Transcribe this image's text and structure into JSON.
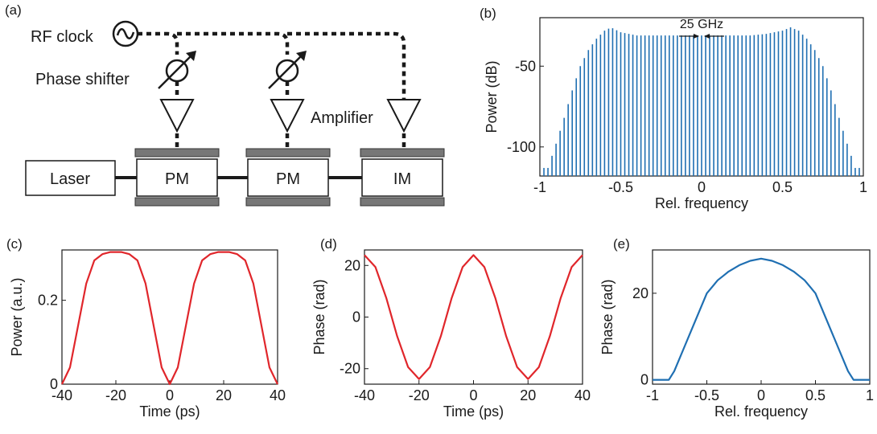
{
  "panel_labels": {
    "a": "(a)",
    "b": "(b)",
    "c": "(c)",
    "d": "(d)",
    "e": "(e)"
  },
  "schematic": {
    "rf_clock": "RF clock",
    "phase_shifter": "Phase shifter",
    "amplifier": "Amplifier",
    "laser": "Laser",
    "modulators": [
      "PM",
      "PM",
      "IM"
    ]
  },
  "chart_data": [
    {
      "panel": "b",
      "type": "bar",
      "xlabel": "Rel. frequency",
      "ylabel": "Power (dB)",
      "xlim": [
        -1,
        1
      ],
      "ylim": [
        -118,
        -20
      ],
      "xticks": [
        "-1",
        "-0.5",
        "0",
        "0.5",
        "1"
      ],
      "yticks": [
        "-50",
        "-100"
      ],
      "annotation": "25 GHz",
      "color": "#1f6fb2",
      "line_count": 79,
      "envelope_x": [
        -0.95,
        -0.9,
        -0.85,
        -0.8,
        -0.75,
        -0.7,
        -0.65,
        -0.6,
        -0.56,
        -0.5,
        -0.4,
        -0.3,
        -0.2,
        -0.1,
        0,
        0.1,
        0.2,
        0.3,
        0.4,
        0.5,
        0.55,
        0.6,
        0.65,
        0.7,
        0.75,
        0.8,
        0.85,
        0.9,
        0.95
      ],
      "envelope_y": [
        -113,
        -98,
        -82,
        -65,
        -50,
        -40,
        -33,
        -28,
        -26,
        -29,
        -31,
        -31,
        -31,
        -31,
        -31,
        -31,
        -31,
        -31,
        -30,
        -28,
        -26,
        -28,
        -33,
        -40,
        -50,
        -65,
        -82,
        -98,
        -113
      ]
    },
    {
      "panel": "c",
      "type": "line",
      "xlabel": "Time (ps)",
      "ylabel": "Power (a.u.)",
      "xlim": [
        -40,
        40
      ],
      "ylim": [
        0,
        0.32
      ],
      "xticks": [
        "-40",
        "-20",
        "0",
        "20",
        "40"
      ],
      "yticks": [
        "0",
        "0.2"
      ],
      "color": "#e0262b",
      "x": [
        -40,
        -37,
        -34,
        -31,
        -28,
        -25,
        -22,
        -20,
        -18,
        -15,
        -12,
        -9,
        -6,
        -3,
        0,
        3,
        6,
        9,
        12,
        15,
        18,
        20,
        22,
        25,
        28,
        31,
        34,
        37,
        40
      ],
      "y": [
        0,
        0.04,
        0.14,
        0.24,
        0.295,
        0.31,
        0.315,
        0.315,
        0.315,
        0.31,
        0.295,
        0.24,
        0.14,
        0.04,
        0,
        0.04,
        0.14,
        0.24,
        0.295,
        0.31,
        0.315,
        0.315,
        0.315,
        0.31,
        0.295,
        0.24,
        0.14,
        0.04,
        0
      ]
    },
    {
      "panel": "d",
      "type": "line",
      "xlabel": "Time (ps)",
      "ylabel": "Phase (rad)",
      "xlim": [
        -40,
        40
      ],
      "ylim": [
        -26,
        26
      ],
      "xticks": [
        "-40",
        "-20",
        "0",
        "20",
        "40"
      ],
      "yticks": [
        "20",
        "0",
        "-20"
      ],
      "color": "#e0262b",
      "x": [
        -40,
        -36,
        -32,
        -28,
        -24,
        -20,
        -16,
        -12,
        -8,
        -4,
        0,
        4,
        8,
        12,
        16,
        20,
        24,
        28,
        32,
        36,
        40
      ],
      "y": [
        24,
        19.4,
        7.4,
        -7.4,
        -19.4,
        -24,
        -19.4,
        -7.4,
        7.4,
        19.4,
        24,
        19.4,
        7.4,
        -7.4,
        -19.4,
        -24,
        -19.4,
        -7.4,
        7.4,
        19.4,
        24
      ]
    },
    {
      "panel": "e",
      "type": "line",
      "xlabel": "Rel. frequency",
      "ylabel": "Phase (rad)",
      "xlim": [
        -1,
        1
      ],
      "ylim": [
        -1,
        30
      ],
      "xticks": [
        "-1",
        "-0.5",
        "0",
        "0.5",
        "1"
      ],
      "yticks": [
        "0",
        "20"
      ],
      "color": "#1f6fb2",
      "x": [
        -1,
        -0.85,
        -0.8,
        -0.7,
        -0.6,
        -0.5,
        -0.45,
        -0.4,
        -0.35,
        -0.3,
        -0.2,
        -0.1,
        0,
        0.1,
        0.2,
        0.3,
        0.35,
        0.4,
        0.45,
        0.5,
        0.6,
        0.7,
        0.8,
        0.85,
        1
      ],
      "y": [
        0,
        0,
        2,
        8,
        14,
        20,
        21.5,
        23,
        24,
        25,
        26.5,
        27.5,
        28,
        27.5,
        26.5,
        25,
        24,
        23,
        21.5,
        20,
        14,
        8,
        2,
        0,
        0
      ]
    }
  ]
}
